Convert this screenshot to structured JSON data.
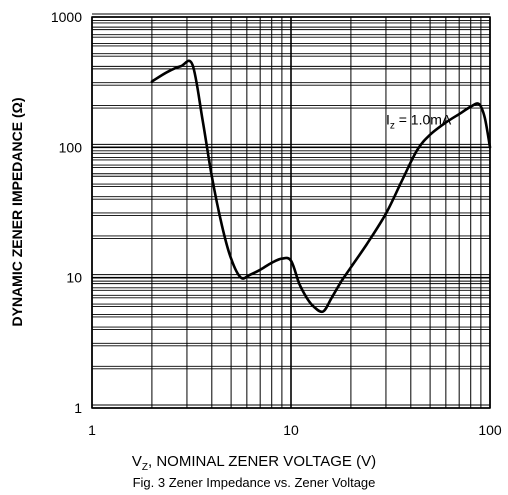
{
  "chart_data": {
    "type": "line",
    "x_scale": "log",
    "y_scale": "log",
    "xlim": [
      1,
      100
    ],
    "ylim": [
      1,
      1000
    ],
    "x_ticks": [
      1,
      10,
      100
    ],
    "x_tick_labels": [
      "1",
      "10",
      "100"
    ],
    "y_ticks": [
      1,
      10,
      100,
      1000
    ],
    "y_tick_labels": [
      "1",
      "10",
      "100",
      "1000"
    ],
    "grid": true,
    "xlabel": {
      "main": "V",
      "sub": "Z",
      "rest": ", NOMINAL ZENER VOLTAGE (V)"
    },
    "ylabel": "DYNAMIC ZENER IMPEDANCE (Ω)",
    "caption": "Fig. 3  Zener Impedance vs. Zener Voltage",
    "annotation": {
      "main": "I",
      "sub": "z",
      "rest": " = 1.0mA",
      "x": 30,
      "y": 150
    },
    "series": [
      {
        "x": [
          2.0,
          2.4,
          2.8,
          3.2,
          3.6,
          4.0,
          4.5,
          5.0,
          5.6,
          6.2,
          7.0,
          8.0,
          9.0,
          10.0,
          11.0,
          12.0,
          13.0,
          14.5,
          16.0,
          18.0,
          20.0,
          24.0,
          30.0,
          36.0,
          43.0,
          50.0,
          60.0,
          70.0,
          80.0,
          88.0,
          94.0,
          100.0
        ],
        "y": [
          320,
          380,
          420,
          430,
          160,
          60,
          25,
          14,
          10,
          10.5,
          11.5,
          13,
          14,
          13.5,
          9,
          7,
          6,
          5.5,
          7,
          9.5,
          12,
          18,
          31,
          55,
          95,
          125,
          155,
          180,
          205,
          215,
          170,
          100
        ]
      }
    ]
  }
}
